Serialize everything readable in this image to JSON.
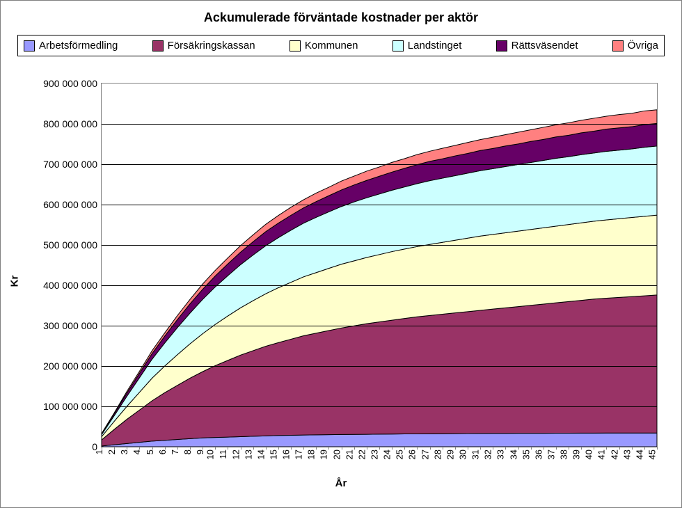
{
  "chart": {
    "type": "area-stacked",
    "title": "Ackumulerade förväntade kostnader per aktör",
    "title_fontsize": 18,
    "title_fontweight": "bold",
    "x_axis": {
      "title": "År",
      "categories": [
        1,
        2,
        3,
        4,
        5,
        6,
        7,
        8,
        9,
        10,
        11,
        12,
        13,
        14,
        15,
        16,
        17,
        18,
        19,
        20,
        21,
        22,
        23,
        24,
        25,
        26,
        27,
        28,
        29,
        30,
        31,
        32,
        33,
        34,
        35,
        36,
        37,
        38,
        39,
        40,
        41,
        42,
        43,
        44,
        45
      ],
      "label_fontsize": 13,
      "label_rotation_deg": -90
    },
    "y_axis": {
      "title": "Kr",
      "min": 0,
      "max": 900000000,
      "tick_step": 100000000,
      "tick_labels": [
        "0",
        "100 000 000",
        "200 000 000",
        "300 000 000",
        "400 000 000",
        "500 000 000",
        "600 000 000",
        "700 000 000",
        "800 000 000",
        "900 000 000"
      ],
      "label_fontsize": 14
    },
    "background_color": "#ffffff",
    "plot_border_color": "#808080",
    "grid_color": "#000000",
    "area_stroke_color": "#000000",
    "area_stroke_width": 1,
    "legend": {
      "position": "top",
      "border_color": "#000000",
      "fontsize": 15
    },
    "series": [
      {
        "name": "Arbetsförmedling",
        "color": "#9999ff",
        "values": [
          2,
          5,
          8,
          11,
          14,
          16,
          18,
          20,
          22,
          23,
          24,
          25,
          26,
          27,
          28,
          28.5,
          29,
          29.5,
          30,
          30.3,
          30.6,
          30.9,
          31.2,
          31.5,
          31.8,
          32,
          32.2,
          32.4,
          32.6,
          32.8,
          33,
          33.1,
          33.2,
          33.3,
          33.4,
          33.5,
          33.6,
          33.7,
          33.8,
          33.9,
          34,
          34,
          34,
          34,
          34
        ]
      },
      {
        "name": "Försäkringskassan",
        "color": "#993366",
        "values": [
          15,
          38,
          60,
          80,
          100,
          118,
          134,
          150,
          164,
          178,
          190,
          202,
          212,
          222,
          230,
          238,
          246,
          252,
          258,
          264,
          269,
          274,
          278,
          282,
          286,
          290,
          293,
          296,
          299,
          302,
          305,
          308,
          311,
          314,
          317,
          320,
          323,
          326,
          329,
          332,
          334,
          336,
          338,
          340,
          342
        ]
      },
      {
        "name": "Kommunen",
        "color": "#ffffcc",
        "values": [
          8,
          20,
          32,
          44,
          56,
          66,
          76,
          85,
          94,
          102,
          110,
          117,
          124,
          130,
          136,
          141,
          146,
          150,
          154,
          158,
          161,
          164,
          167,
          170,
          172,
          174,
          176,
          178,
          180,
          182,
          184,
          185,
          186,
          187,
          188,
          189,
          190,
          191,
          192,
          193,
          194,
          195,
          196,
          197,
          198
        ]
      },
      {
        "name": "Landstinget",
        "color": "#ccffff",
        "values": [
          5,
          14,
          25,
          36,
          47,
          57,
          67,
          76,
          85,
          93,
          100,
          107,
          113,
          119,
          124,
          129,
          133,
          137,
          140,
          143,
          146,
          148,
          150,
          152,
          154,
          156,
          158,
          159,
          160,
          161,
          162,
          163,
          164,
          165,
          166,
          167,
          168,
          168,
          169,
          169,
          170,
          170,
          170,
          171,
          171
        ]
      },
      {
        "name": "Rättsväsendet",
        "color": "#660066",
        "values": [
          2,
          5,
          8,
          11,
          14,
          17,
          20,
          23,
          25,
          27,
          29,
          31,
          33,
          35,
          36,
          37,
          38,
          39,
          40,
          41,
          42,
          43,
          44,
          45,
          46,
          47,
          48,
          48,
          49,
          49,
          50,
          50,
          51,
          51,
          52,
          52,
          53,
          53,
          54,
          54,
          55,
          55,
          55,
          56,
          56
        ]
      },
      {
        "name": "Övriga",
        "color": "#ff8080",
        "values": [
          1,
          2,
          4,
          5,
          7,
          8,
          10,
          11,
          13,
          14,
          15,
          16,
          17,
          18,
          19,
          20,
          20,
          21,
          21,
          22,
          22,
          23,
          23,
          24,
          24,
          25,
          25,
          26,
          26,
          27,
          27,
          28,
          28,
          29,
          29,
          30,
          30,
          31,
          31,
          32,
          32,
          33,
          33,
          34,
          34
        ]
      }
    ],
    "value_scale_note": "series values are in millions (multiply by 1,000,000 for Kr)"
  }
}
